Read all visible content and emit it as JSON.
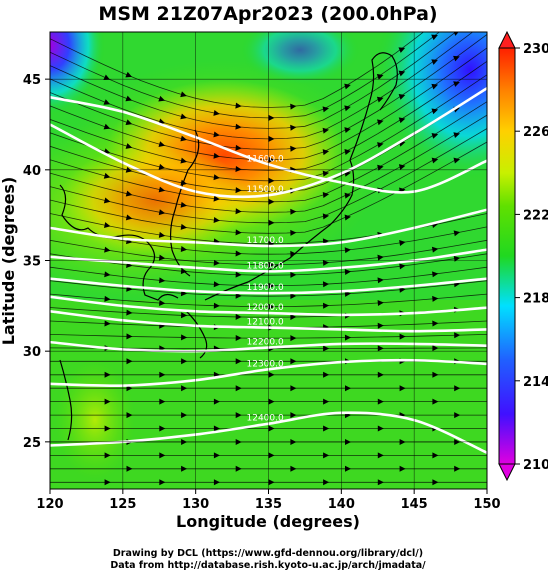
{
  "chart_data": {
    "type": "heatmap",
    "title": "MSM 21Z07Apr2023 (200.0hPa)",
    "xlabel": "Longitude (degrees)",
    "ylabel": "Latitude  (degrees)",
    "xlim": [
      120,
      150
    ],
    "ylim": [
      22.4,
      47.6
    ],
    "x_ticks": [
      120,
      125,
      130,
      135,
      140,
      145,
      150
    ],
    "y_ticks": [
      25,
      30,
      35,
      40,
      45
    ],
    "colorbar": {
      "min": 210,
      "max": 230,
      "ticks": [
        210,
        214,
        218,
        222,
        226,
        230
      ],
      "colors": [
        "#e000e0",
        "#2020ff",
        "#00e0ff",
        "#20d820",
        "#c8f000",
        "#ffa000",
        "#ff2000"
      ]
    },
    "shaded_variable_extrema": {
      "max_region": [
        132,
        41.5,
        229
      ],
      "min_region_ne": [
        148,
        46,
        212
      ]
    },
    "contours": [
      {
        "label": "11500.0",
        "lat_at": [
          42.5,
          40.4,
          38.8,
          38.6,
          39.8,
          42.0,
          44.5
        ]
      },
      {
        "label": "11600.0",
        "lat_at": [
          44.0,
          43.2,
          41.8,
          40.3,
          39.3,
          38.8,
          40.5
        ]
      },
      {
        "label": "11700.0",
        "lat_at": [
          36.8,
          36.2,
          36.0,
          35.8,
          36.0,
          36.8,
          37.8
        ]
      },
      {
        "label": "11800.0",
        "lat_at": [
          35.2,
          34.9,
          34.6,
          34.4,
          34.6,
          35.0,
          35.6
        ]
      },
      {
        "label": "11900.0",
        "lat_at": [
          34.0,
          33.6,
          33.3,
          33.2,
          33.3,
          33.6,
          34.0
        ]
      },
      {
        "label": "12000.0",
        "lat_at": [
          33.0,
          32.5,
          32.2,
          32.1,
          32.0,
          32.1,
          32.4
        ]
      },
      {
        "label": "12100.0",
        "lat_at": [
          32.2,
          31.7,
          31.4,
          31.3,
          31.2,
          31.1,
          31.2
        ]
      },
      {
        "label": "12200.0",
        "lat_at": [
          30.5,
          30.1,
          30.0,
          30.2,
          30.4,
          30.4,
          30.3
        ]
      },
      {
        "label": "12300.0",
        "lat_at": [
          28.2,
          28.1,
          28.4,
          29.0,
          29.4,
          29.5,
          29.3
        ]
      },
      {
        "label": "12400.0",
        "lat_at": [
          24.8,
          25.0,
          25.4,
          26.0,
          26.6,
          26.2,
          24.4
        ]
      }
    ],
    "contour_lons": [
      120,
      125,
      130,
      135,
      140,
      145,
      150
    ],
    "grid": true
  },
  "credits": {
    "line1": "Drawing by DCL (https://www.gfd-dennou.org/library/dcl/)",
    "line2": "Data from http://database.rish.kyoto-u.ac.jp/arch/jmadata/"
  }
}
